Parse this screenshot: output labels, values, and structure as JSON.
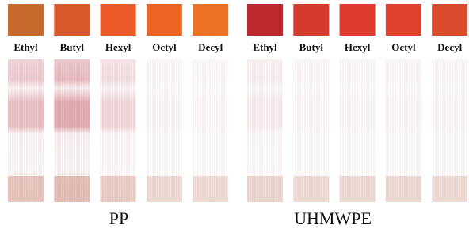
{
  "panels": [
    {
      "label": "PP",
      "samples": [
        "Ethyl",
        "Butyl",
        "Hexyl",
        "Octyl",
        "Decyl"
      ]
    },
    {
      "label": "UHMWPE",
      "samples": [
        "Ethyl",
        "Butyl",
        "Hexyl",
        "Octyl",
        "Decyl"
      ]
    }
  ]
}
